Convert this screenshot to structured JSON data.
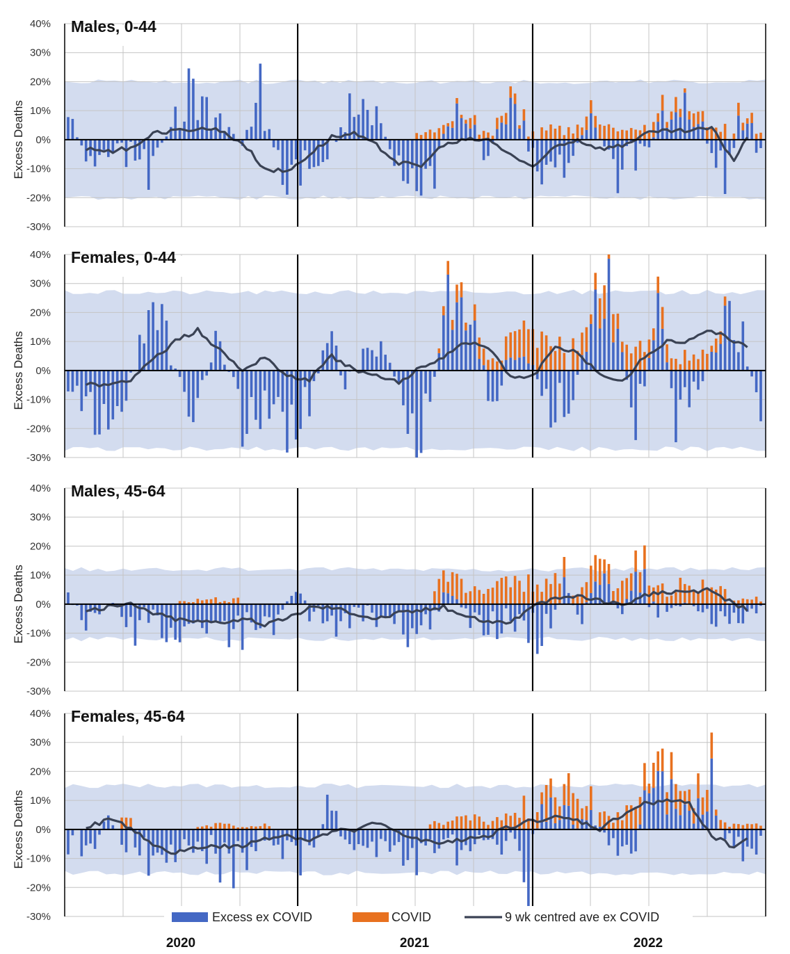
{
  "colors": {
    "excess_ex_covid": "#4468c4",
    "covid": "#e8711f",
    "average": "#3a4254",
    "band": "#d3dcef",
    "grid": "#c4c4c4",
    "divider": "#000000"
  },
  "y_tick_labels": [
    "40%",
    "30%",
    "20%",
    "10%",
    "0%",
    "-10%",
    "-20%",
    "-30%"
  ],
  "x_labels": [
    "2020",
    "2021",
    "2022"
  ],
  "legend": {
    "excess": "Excess ex COVID",
    "covid": "COVID",
    "average": "9 wk centred ave ex COVID"
  },
  "chart_data": [
    {
      "type": "bar",
      "title": "Males, 0-44",
      "ylabel": "Excess Deaths",
      "ylim": [
        -30,
        40
      ],
      "x_unit": "week",
      "x_range": [
        1,
        156
      ],
      "x_labels": [
        "2020",
        "2021",
        "2022"
      ],
      "band": {
        "upper": 20,
        "lower": -20
      },
      "series": [
        {
          "name": "Excess ex COVID",
          "anchors_x": [
            1,
            6,
            12,
            19,
            28,
            33,
            40,
            44,
            49,
            52,
            58,
            64,
            70,
            76,
            83,
            88,
            95,
            100,
            108,
            113,
            118,
            124,
            130,
            137,
            142,
            148,
            152,
            156
          ],
          "anchors_y": [
            12,
            -15,
            -5,
            -16,
            26,
            10,
            -4,
            28,
            -18,
            -19,
            -17,
            19,
            16,
            -21,
            -18,
            19,
            -10,
            21,
            -26,
            -14,
            9,
            -15,
            -4,
            19,
            10,
            -21,
            16,
            -8
          ]
        },
        {
          "name": "COVID",
          "segments": [
            [
              79,
              105,
              2.5
            ],
            [
              107,
              148,
              3.5
            ],
            [
              150,
              156,
              3
            ]
          ]
        },
        {
          "name": "9 wk centred ave ex COVID",
          "x": [
            5,
            10,
            15,
            20,
            25,
            30,
            35,
            40,
            45,
            50,
            55,
            60,
            65,
            70,
            75,
            80,
            85,
            90,
            95,
            100,
            105,
            110,
            115,
            120,
            125,
            130,
            135,
            140,
            145,
            150,
            153
          ],
          "y": [
            -3,
            -4,
            -3,
            2,
            3,
            4,
            3,
            -1,
            -10,
            -11,
            -5,
            1,
            2,
            -2,
            -8,
            -9,
            -2,
            0,
            0,
            -5,
            -10,
            -2,
            0,
            -3,
            -2,
            2,
            3,
            3,
            4,
            -7,
            1
          ]
        }
      ]
    },
    {
      "type": "bar",
      "title": "Females, 0-44",
      "ylabel": "Excess Deaths",
      "ylim": [
        -30,
        40
      ],
      "x_unit": "week",
      "x_range": [
        1,
        156
      ],
      "x_labels": [
        "2020",
        "2021",
        "2022"
      ],
      "band": {
        "upper": 27,
        "lower": -27
      },
      "series": [
        {
          "name": "Excess ex COVID",
          "anchors_x": [
            1,
            6,
            12,
            17,
            21,
            26,
            29,
            35,
            40,
            45,
            50,
            55,
            60,
            63,
            68,
            72,
            78,
            81,
            86,
            92,
            96,
            99,
            103,
            109,
            114,
            117,
            122,
            128,
            133,
            137,
            141,
            145,
            149,
            152,
            156
          ],
          "anchors_y": [
            -10,
            -17,
            -29,
            15,
            34,
            -13,
            -26,
            24,
            -28,
            -15,
            -30,
            -20,
            25,
            -15,
            18,
            12,
            -30,
            -25,
            40,
            24,
            -25,
            5,
            12,
            -20,
            -18,
            12,
            40,
            -28,
            35,
            -25,
            -14,
            10,
            24,
            20,
            -30
          ]
        },
        {
          "name": "COVID",
          "segments": [
            [
              84,
              90,
              4
            ],
            [
              92,
              99,
              6
            ],
            [
              100,
              112,
              9
            ],
            [
              114,
              130,
              8
            ],
            [
              131,
              148,
              5
            ]
          ]
        },
        {
          "name": "9 wk centred ave ex COVID",
          "x": [
            5,
            10,
            15,
            20,
            25,
            30,
            35,
            40,
            45,
            50,
            55,
            60,
            65,
            70,
            75,
            80,
            85,
            90,
            95,
            100,
            105,
            110,
            115,
            120,
            125,
            130,
            135,
            140,
            145,
            150,
            153
          ],
          "y": [
            -5,
            -5,
            -3,
            4,
            10,
            14,
            7,
            0,
            5,
            -2,
            -3,
            5,
            0,
            -2,
            -4,
            1,
            5,
            10,
            8,
            -2,
            -2,
            8,
            6,
            -1,
            -4,
            5,
            10,
            10,
            14,
            10,
            8
          ]
        }
      ]
    },
    {
      "type": "bar",
      "title": "Males, 45-64",
      "ylabel": "Excess Deaths",
      "ylim": [
        -30,
        40
      ],
      "x_unit": "week",
      "x_range": [
        1,
        156
      ],
      "x_labels": [
        "2020",
        "2021",
        "2022"
      ],
      "band": {
        "upper": 12,
        "lower": -12
      },
      "series": [
        {
          "name": "Excess ex COVID",
          "anchors_x": [
            1,
            5,
            10,
            15,
            20,
            26,
            32,
            36,
            41,
            47,
            52,
            56,
            62,
            67,
            72,
            77,
            82,
            87,
            91,
            95,
            99,
            104,
            108,
            112,
            116,
            120,
            124,
            129,
            133,
            137,
            142,
            147,
            152,
            156
          ],
          "anchors_y": [
            3,
            -10,
            3,
            -14,
            -5,
            -16,
            -9,
            -13,
            -12,
            -14,
            10,
            -8,
            -11,
            -8,
            -9,
            -14,
            -12,
            11,
            -11,
            -16,
            -8,
            -12,
            -18,
            9,
            -10,
            16,
            -6,
            14,
            -4,
            -6,
            -4,
            -10,
            -8,
            -3
          ]
        },
        {
          "name": "COVID",
          "segments": [
            [
              26,
              39,
              1.5
            ],
            [
              83,
              97,
              6
            ],
            [
              98,
              112,
              7
            ],
            [
              114,
              148,
              6
            ],
            [
              150,
              156,
              2
            ]
          ]
        },
        {
          "name": "9 wk centred ave ex COVID",
          "x": [
            5,
            10,
            15,
            20,
            25,
            30,
            35,
            40,
            45,
            50,
            55,
            60,
            65,
            70,
            75,
            80,
            85,
            90,
            95,
            100,
            105,
            110,
            115,
            120,
            125,
            130,
            135,
            140,
            145,
            150,
            153
          ],
          "y": [
            -2,
            -1,
            0,
            -3,
            -5,
            -6,
            -6,
            -5,
            -7,
            -5,
            -1,
            -1,
            -3,
            -5,
            -3,
            -2,
            -1,
            -4,
            -6,
            -6,
            -1,
            2,
            3,
            1,
            0,
            3,
            4,
            4,
            5,
            0,
            -2
          ]
        }
      ]
    },
    {
      "type": "bar",
      "title": "Females, 45-64",
      "ylabel": "Excess Deaths",
      "ylim": [
        -30,
        40
      ],
      "x_unit": "week",
      "x_range": [
        1,
        156
      ],
      "x_labels": [
        "2020",
        "2021",
        "2022"
      ],
      "band": {
        "upper": 15,
        "lower": -15
      },
      "series": [
        {
          "name": "Excess ex COVID",
          "anchors_x": [
            1,
            6,
            10,
            14,
            18,
            21,
            26,
            31,
            36,
            41,
            45,
            50,
            55,
            60,
            64,
            70,
            74,
            79,
            85,
            90,
            95,
            100,
            104,
            107,
            112,
            118,
            122,
            127,
            132,
            137,
            141,
            145,
            150,
            154,
            156
          ],
          "anchors_y": [
            -10,
            -9,
            10,
            -9,
            -12,
            -17,
            -14,
            -10,
            -19,
            -14,
            -5,
            -9,
            -14,
            15,
            -10,
            -14,
            -10,
            -14,
            -12,
            -10,
            -5,
            -9,
            -24,
            12,
            7,
            9,
            -5,
            -14,
            29,
            14,
            9,
            22,
            -15,
            -10,
            -6
          ]
        },
        {
          "name": "COVID",
          "segments": [
            [
              13,
              15,
              3
            ],
            [
              30,
              46,
              1.5
            ],
            [
              82,
              101,
              3.5
            ],
            [
              101,
              118,
              8
            ],
            [
              120,
              125,
              4
            ],
            [
              126,
              145,
              6
            ],
            [
              146,
              156,
              2
            ]
          ]
        },
        {
          "name": "9 wk centred ave ex COVID",
          "x": [
            5,
            10,
            15,
            20,
            25,
            30,
            35,
            40,
            45,
            50,
            55,
            60,
            65,
            70,
            75,
            80,
            85,
            90,
            95,
            100,
            105,
            110,
            115,
            120,
            125,
            130,
            135,
            140,
            145,
            150,
            153
          ],
          "y": [
            1,
            3,
            1,
            -6,
            -8,
            -6,
            -6,
            -6,
            -3,
            -2,
            -4,
            -1,
            0,
            2,
            -1,
            -4,
            -5,
            -3,
            -2,
            1,
            3,
            4,
            3,
            0,
            5,
            9,
            10,
            9,
            -2,
            -6,
            -3
          ]
        }
      ]
    }
  ]
}
